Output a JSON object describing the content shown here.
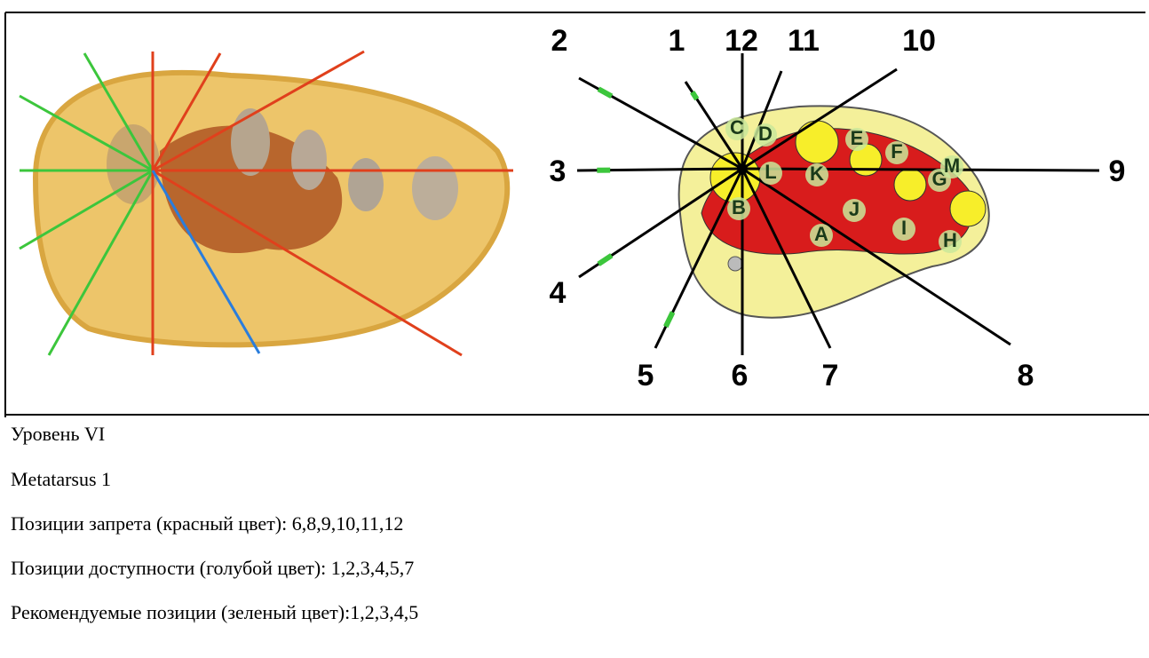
{
  "figure": {
    "positions": [
      "1",
      "2",
      "3",
      "4",
      "5",
      "6",
      "7",
      "8",
      "9",
      "10",
      "11",
      "12"
    ],
    "structures": [
      "A",
      "B",
      "C",
      "D",
      "E",
      "F",
      "G",
      "H",
      "I",
      "J",
      "K",
      "L",
      "M"
    ]
  },
  "text": {
    "level": "Уровень VI",
    "bone": "Metatarsus 1",
    "forbidden": "Позиции запрета (красный цвет): 6,8,9,10,11,12",
    "available": "Позиции доступности (голубой цвет): 1,2,3,4,5,7",
    "recommended": "Рекомендуемые позиции (зеленый цвет):1,2,3,4,5"
  }
}
